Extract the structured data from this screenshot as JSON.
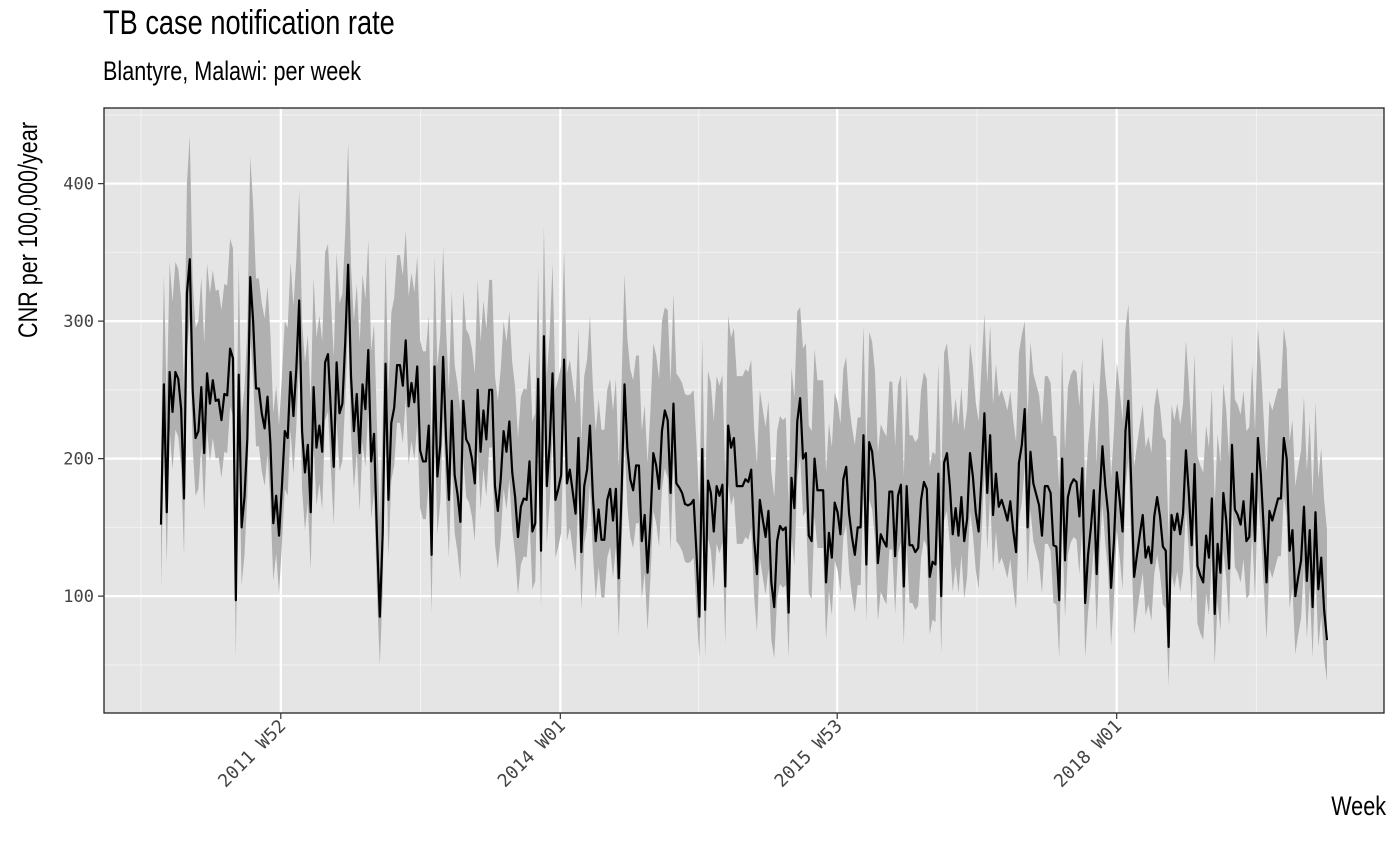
{
  "chart_data": {
    "type": "line",
    "title": "TB case notification rate",
    "subtitle": "Blantyre, Malawi: per week",
    "xlabel": "Week",
    "ylabel": "CNR per 100,000/year",
    "x_start": "2011 W07",
    "x_end": "2019 W28",
    "x_ticks": [
      "2011 W52",
      "2014 W01",
      "2015 W53",
      "2018 W01"
    ],
    "y_ticks": [
      100,
      200,
      300,
      400
    ],
    "ylim": [
      15,
      455
    ],
    "grid": true,
    "band": "confidence interval (shaded)",
    "series": [
      {
        "values": [
          152,
          254,
          161,
          263,
          234,
          263,
          258,
          236,
          171,
          320,
          345,
          250,
          215,
          220,
          252,
          204,
          262,
          240,
          257,
          242,
          243,
          228,
          247,
          246,
          280,
          273,
          97,
          261,
          150,
          172,
          215,
          332,
          300,
          251,
          251,
          233,
          222,
          245,
          211,
          153,
          173,
          144,
          180,
          220,
          215,
          263,
          231,
          265,
          315,
          220,
          190,
          210,
          161,
          252,
          208,
          224,
          205,
          270,
          276,
          235,
          194,
          270,
          233,
          240,
          285,
          341,
          260,
          220,
          247,
          204,
          254,
          236,
          279,
          198,
          218,
          145,
          85,
          145,
          269,
          170,
          226,
          237,
          268,
          268,
          253,
          286,
          238,
          255,
          241,
          267,
          206,
          198,
          198,
          224,
          130,
          267,
          187,
          210,
          274,
          215,
          170,
          242,
          188,
          174,
          154,
          242,
          214,
          210,
          200,
          182,
          250,
          205,
          235,
          214,
          250,
          250,
          180,
          162,
          185,
          220,
          205,
          227,
          190,
          172,
          143,
          165,
          171,
          170,
          198,
          147,
          153,
          258,
          133,
          289,
          180,
          210,
          262,
          170,
          178,
          188,
          272,
          182,
          192,
          176,
          160,
          215,
          132,
          180,
          192,
          224,
          173,
          140,
          163,
          141,
          141,
          170,
          178,
          155,
          178,
          113,
          177,
          254,
          207,
          185,
          177,
          195,
          195,
          140,
          159,
          117,
          155,
          204,
          195,
          178,
          220,
          235,
          228,
          175,
          240,
          182,
          179,
          175,
          167,
          166,
          167,
          170,
          131,
          85,
          207,
          90,
          184,
          175,
          147,
          180,
          173,
          181,
          107,
          224,
          208,
          215,
          180,
          180,
          180,
          185,
          183,
          192,
          142,
          116,
          170,
          156,
          143,
          162,
          110,
          92,
          140,
          151,
          148,
          150,
          88,
          186,
          164,
          227,
          244,
          200,
          204,
          144,
          140,
          200,
          177,
          177,
          177,
          110,
          146,
          128,
          168,
          161,
          145,
          185,
          194,
          160,
          143,
          130,
          150,
          150,
          217,
          123,
          212,
          205,
          183,
          124,
          145,
          140,
          136,
          176,
          176,
          129,
          173,
          181,
          107,
          180,
          137,
          137,
          132,
          135,
          170,
          183,
          178,
          114,
          125,
          123,
          189,
          100,
          197,
          204,
          180,
          145,
          164,
          144,
          172,
          140,
          156,
          204,
          187,
          161,
          147,
          187,
          233,
          175,
          217,
          159,
          189,
          165,
          170,
          163,
          155,
          169,
          148,
          132,
          197,
          210,
          236,
          150,
          205,
          182,
          174,
          166,
          144,
          180,
          180,
          175,
          137,
          136,
          97,
          200,
          126,
          172,
          181,
          185,
          183,
          158,
          193,
          95,
          130,
          150,
          177,
          116,
          172,
          209,
          180,
          160,
          106,
          140,
          190,
          170,
          147,
          220,
          242,
          182,
          114,
          130,
          145,
          159,
          128,
          136,
          124,
          158,
          172,
          158,
          136,
          133,
          63,
          159,
          148,
          160,
          145,
          160,
          206,
          175,
          137,
          196,
          122,
          115,
          110,
          144,
          128,
          171,
          87,
          138,
          117,
          175,
          155,
          120,
          210,
          163,
          159,
          152,
          169,
          140,
          143,
          189,
          140,
          215,
          189,
          150,
          110,
          162,
          155,
          163,
          171,
          171,
          215,
          200,
          133,
          148,
          100,
          114,
          126,
          165,
          111,
          148,
          92,
          161,
          105,
          128,
          90,
          68
        ],
        "lower": [
          105,
          212,
          124,
          221,
          192,
          221,
          216,
          194,
          129,
          278,
          303,
          208,
          173,
          178,
          210,
          162,
          220,
          198,
          215,
          200,
          201,
          186,
          205,
          204,
          238,
          231,
          55,
          219,
          108,
          130,
          173,
          290,
          258,
          209,
          209,
          191,
          180,
          203,
          169,
          111,
          131,
          102,
          138,
          178,
          173,
          221,
          189,
          223,
          273,
          178,
          148,
          168,
          119,
          210,
          166,
          182,
          163,
          228,
          234,
          193,
          152,
          228,
          191,
          198,
          243,
          299,
          218,
          178,
          205,
          162,
          212,
          194,
          237,
          156,
          176,
          103,
          50,
          103,
          227,
          128,
          184,
          195,
          226,
          226,
          211,
          244,
          196,
          213,
          199,
          225,
          164,
          156,
          156,
          182,
          88,
          225,
          145,
          168,
          232,
          173,
          128,
          200,
          146,
          132,
          112,
          200,
          172,
          168,
          158,
          140,
          208,
          163,
          193,
          172,
          208,
          208,
          138,
          120,
          143,
          178,
          163,
          185,
          148,
          130,
          101,
          123,
          129,
          128,
          156,
          105,
          111,
          216,
          91,
          247,
          138,
          168,
          220,
          128,
          136,
          146,
          230,
          140,
          150,
          134,
          118,
          173,
          90,
          138,
          150,
          182,
          131,
          98,
          121,
          99,
          99,
          128,
          136,
          113,
          136,
          71,
          135,
          212,
          165,
          143,
          135,
          153,
          153,
          98,
          117,
          75,
          113,
          162,
          153,
          136,
          178,
          193,
          186,
          133,
          198,
          140,
          137,
          133,
          125,
          124,
          125,
          128,
          89,
          55,
          165,
          55,
          142,
          133,
          105,
          138,
          131,
          139,
          65,
          182,
          166,
          173,
          138,
          138,
          138,
          143,
          141,
          150,
          100,
          74,
          128,
          114,
          101,
          120,
          68,
          55,
          98,
          109,
          106,
          108,
          55,
          144,
          122,
          185,
          202,
          158,
          162,
          102,
          98,
          158,
          135,
          135,
          135,
          68,
          104,
          86,
          126,
          119,
          103,
          143,
          152,
          118,
          101,
          88,
          108,
          108,
          175,
          81,
          170,
          163,
          141,
          82,
          103,
          98,
          94,
          134,
          134,
          87,
          131,
          139,
          65,
          138,
          95,
          95,
          90,
          93,
          128,
          141,
          136,
          72,
          83,
          81,
          147,
          58,
          155,
          162,
          138,
          103,
          122,
          102,
          130,
          98,
          114,
          162,
          145,
          119,
          105,
          145,
          191,
          133,
          175,
          117,
          147,
          123,
          128,
          121,
          113,
          127,
          106,
          90,
          155,
          168,
          194,
          108,
          163,
          140,
          132,
          124,
          102,
          138,
          138,
          133,
          95,
          94,
          55,
          158,
          84,
          130,
          139,
          143,
          141,
          116,
          151,
          55,
          88,
          108,
          135,
          74,
          130,
          167,
          138,
          118,
          64,
          98,
          148,
          128,
          105,
          178,
          200,
          140,
          72,
          88,
          103,
          117,
          86,
          94,
          82,
          116,
          130,
          116,
          94,
          91,
          35,
          117,
          106,
          118,
          103,
          118,
          164,
          133,
          95,
          154,
          80,
          73,
          68,
          102,
          86,
          129,
          50,
          96,
          75,
          133,
          113,
          78,
          168,
          121,
          117,
          110,
          127,
          98,
          101,
          147,
          98,
          173,
          147,
          108,
          68,
          120,
          113,
          121,
          129,
          129,
          173,
          158,
          91,
          106,
          58,
          72,
          84,
          123,
          69,
          106,
          55,
          119,
          63,
          86,
          55,
          38
        ],
        "upper": [
          200,
          334,
          241,
          343,
          314,
          343,
          338,
          316,
          251,
          400,
          435,
          330,
          295,
          300,
          332,
          284,
          342,
          320,
          337,
          322,
          323,
          308,
          327,
          326,
          360,
          353,
          175,
          341,
          230,
          252,
          295,
          420,
          385,
          331,
          331,
          313,
          302,
          325,
          291,
          233,
          253,
          224,
          260,
          300,
          295,
          343,
          311,
          345,
          395,
          300,
          270,
          290,
          241,
          332,
          288,
          304,
          285,
          350,
          356,
          315,
          274,
          350,
          313,
          320,
          365,
          430,
          340,
          300,
          327,
          284,
          334,
          316,
          359,
          278,
          298,
          225,
          155,
          225,
          349,
          250,
          306,
          317,
          348,
          348,
          333,
          366,
          318,
          335,
          321,
          347,
          286,
          278,
          278,
          304,
          210,
          347,
          267,
          290,
          354,
          295,
          250,
          322,
          268,
          254,
          234,
          322,
          294,
          290,
          280,
          262,
          330,
          285,
          315,
          294,
          330,
          330,
          260,
          242,
          265,
          300,
          285,
          307,
          270,
          252,
          215,
          245,
          251,
          250,
          278,
          227,
          233,
          338,
          213,
          369,
          260,
          290,
          342,
          250,
          258,
          268,
          352,
          262,
          272,
          256,
          240,
          295,
          212,
          260,
          272,
          304,
          253,
          220,
          243,
          221,
          221,
          250,
          258,
          235,
          258,
          193,
          257,
          334,
          287,
          265,
          257,
          275,
          275,
          220,
          239,
          197,
          235,
          284,
          275,
          258,
          300,
          310,
          308,
          255,
          320,
          262,
          259,
          255,
          247,
          246,
          247,
          250,
          211,
          165,
          287,
          170,
          264,
          255,
          227,
          260,
          253,
          261,
          187,
          304,
          288,
          295,
          260,
          260,
          260,
          265,
          263,
          272,
          222,
          196,
          250,
          236,
          223,
          242,
          190,
          172,
          220,
          231,
          228,
          230,
          168,
          266,
          244,
          307,
          310,
          280,
          284,
          224,
          220,
          280,
          257,
          257,
          257,
          190,
          226,
          208,
          248,
          241,
          225,
          265,
          274,
          240,
          223,
          210,
          230,
          230,
          297,
          203,
          292,
          285,
          263,
          204,
          225,
          220,
          216,
          256,
          256,
          209,
          253,
          261,
          187,
          260,
          217,
          217,
          212,
          215,
          250,
          263,
          258,
          194,
          205,
          203,
          269,
          180,
          277,
          284,
          260,
          225,
          244,
          224,
          252,
          220,
          236,
          284,
          267,
          241,
          227,
          267,
          305,
          255,
          297,
          239,
          269,
          245,
          250,
          243,
          235,
          249,
          228,
          212,
          277,
          290,
          300,
          230,
          285,
          262,
          254,
          246,
          224,
          260,
          260,
          255,
          217,
          216,
          177,
          280,
          206,
          252,
          261,
          265,
          263,
          238,
          273,
          175,
          210,
          230,
          257,
          196,
          252,
          289,
          260,
          240,
          186,
          220,
          270,
          250,
          227,
          295,
          312,
          262,
          194,
          210,
          225,
          239,
          208,
          216,
          204,
          238,
          252,
          238,
          216,
          213,
          143,
          239,
          228,
          240,
          225,
          240,
          286,
          255,
          217,
          276,
          202,
          195,
          190,
          224,
          208,
          251,
          167,
          218,
          197,
          255,
          235,
          200,
          290,
          243,
          239,
          232,
          249,
          220,
          223,
          269,
          220,
          295,
          269,
          230,
          190,
          242,
          235,
          243,
          251,
          251,
          295,
          280,
          213,
          228,
          180,
          194,
          206,
          245,
          191,
          228,
          172,
          241,
          185,
          208,
          170,
          148
        ]
      }
    ]
  }
}
